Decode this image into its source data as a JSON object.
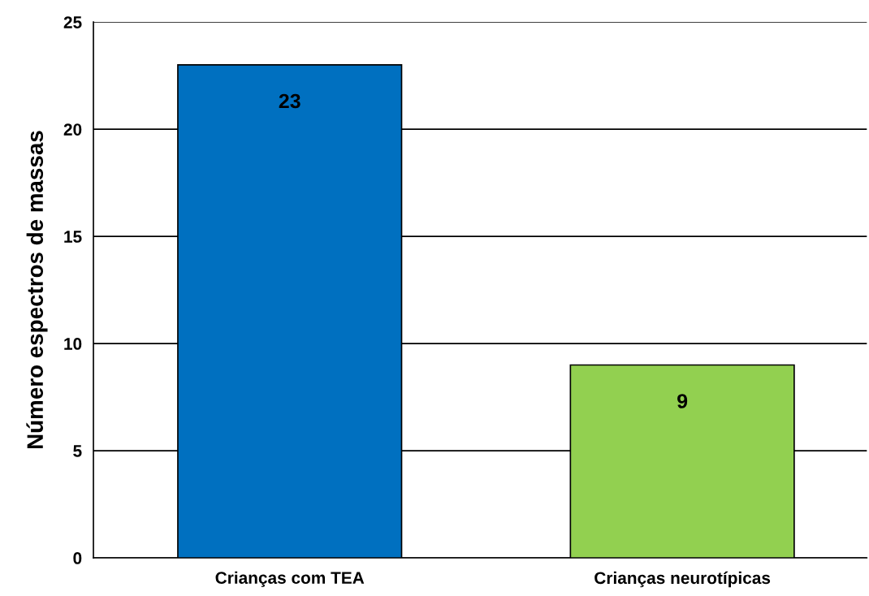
{
  "chart_data": {
    "type": "bar",
    "ylabel": "Número espectros de massas",
    "categories": [
      "Crianças com TEA",
      "Crianças neurotípicas"
    ],
    "values": [
      23,
      9
    ],
    "colors": [
      "#0070c0",
      "#92d050"
    ],
    "ylim": [
      0,
      25
    ],
    "yticks": [
      0,
      5,
      10,
      15,
      20,
      25
    ],
    "grid": "y",
    "data_labels": true
  }
}
